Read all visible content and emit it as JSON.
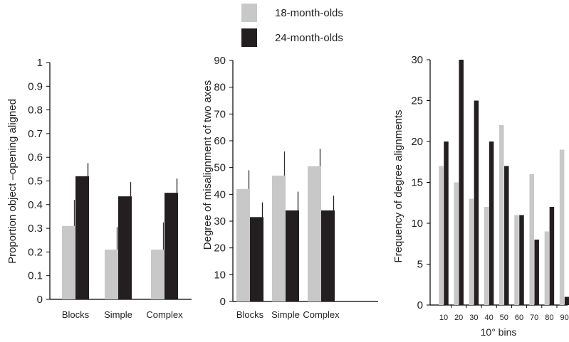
{
  "legend": [
    {
      "label": "18-month-olds",
      "color": "#c8c8c8"
    },
    {
      "label": "24-month-olds",
      "color": "#231f20"
    }
  ],
  "chart_data": [
    {
      "type": "bar",
      "categories": [
        "Blocks",
        "Simple",
        "Complex"
      ],
      "ylabel": "Proportion object –opening aligned",
      "xlabel": "",
      "ylim": [
        0,
        1
      ],
      "yticks": [
        "0",
        "0.1",
        "0.2",
        "0.3",
        "0.4",
        "0.5",
        "0.6",
        "0.7",
        "0.8",
        "0.9",
        "1"
      ],
      "series": [
        {
          "name": "18-month-olds",
          "values": [
            0.31,
            0.21,
            0.21
          ],
          "errors": [
            0.11,
            0.095,
            0.115
          ]
        },
        {
          "name": "24-month-olds",
          "values": [
            0.52,
            0.435,
            0.45
          ],
          "errors": [
            0.055,
            0.06,
            0.06
          ]
        }
      ]
    },
    {
      "type": "bar",
      "categories": [
        "Blocks",
        "Simple",
        "Complex"
      ],
      "ylabel": "Degree of misalignment of two axes",
      "xlabel": "",
      "ylim": [
        0,
        90
      ],
      "yticks": [
        "0",
        "10",
        "20",
        "30",
        "40",
        "50",
        "60",
        "70",
        "80",
        "90"
      ],
      "series": [
        {
          "name": "18-month-olds",
          "values": [
            42,
            47,
            50.5
          ],
          "errors": [
            7,
            9,
            6.5
          ]
        },
        {
          "name": "24-month-olds",
          "values": [
            31.5,
            34,
            34
          ],
          "errors": [
            5.5,
            7,
            5.5
          ]
        }
      ]
    },
    {
      "type": "bar",
      "categories": [
        "10",
        "20",
        "30",
        "40",
        "50",
        "60",
        "70",
        "80",
        "90"
      ],
      "ylabel": "Frequency of degree alignments",
      "xlabel": "10° bins",
      "ylim": [
        0,
        30
      ],
      "yticks": [
        "0",
        "5",
        "10",
        "15",
        "20",
        "25",
        "30"
      ],
      "series": [
        {
          "name": "18-month-olds",
          "values": [
            17,
            15,
            13,
            12,
            22,
            11,
            16,
            9,
            19
          ]
        },
        {
          "name": "24-month-olds",
          "values": [
            20,
            30,
            25,
            20,
            17,
            11,
            8,
            12,
            1
          ]
        }
      ]
    }
  ]
}
